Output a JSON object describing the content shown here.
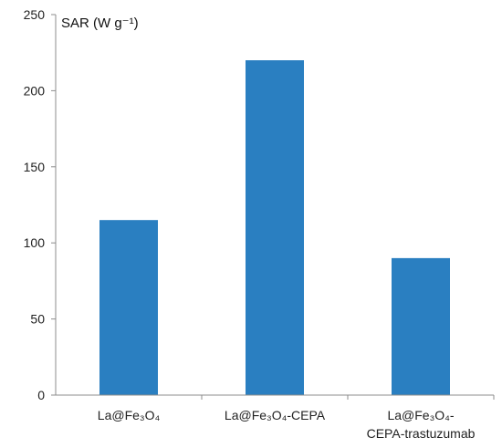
{
  "chart_data": {
    "type": "bar",
    "categories": [
      [
        "La@Fe₃O₄"
      ],
      [
        "La@Fe₃O₄-CEPA"
      ],
      [
        "La@Fe₃O₄-",
        "CEPA-trastuzumab"
      ]
    ],
    "values": [
      115,
      220,
      90
    ],
    "ylabel": "SAR (W g⁻¹)",
    "ylim": [
      0,
      250
    ],
    "yticks": [
      0,
      50,
      100,
      150,
      200,
      250
    ],
    "grid": false,
    "bar_color": "#2a7fc1"
  }
}
